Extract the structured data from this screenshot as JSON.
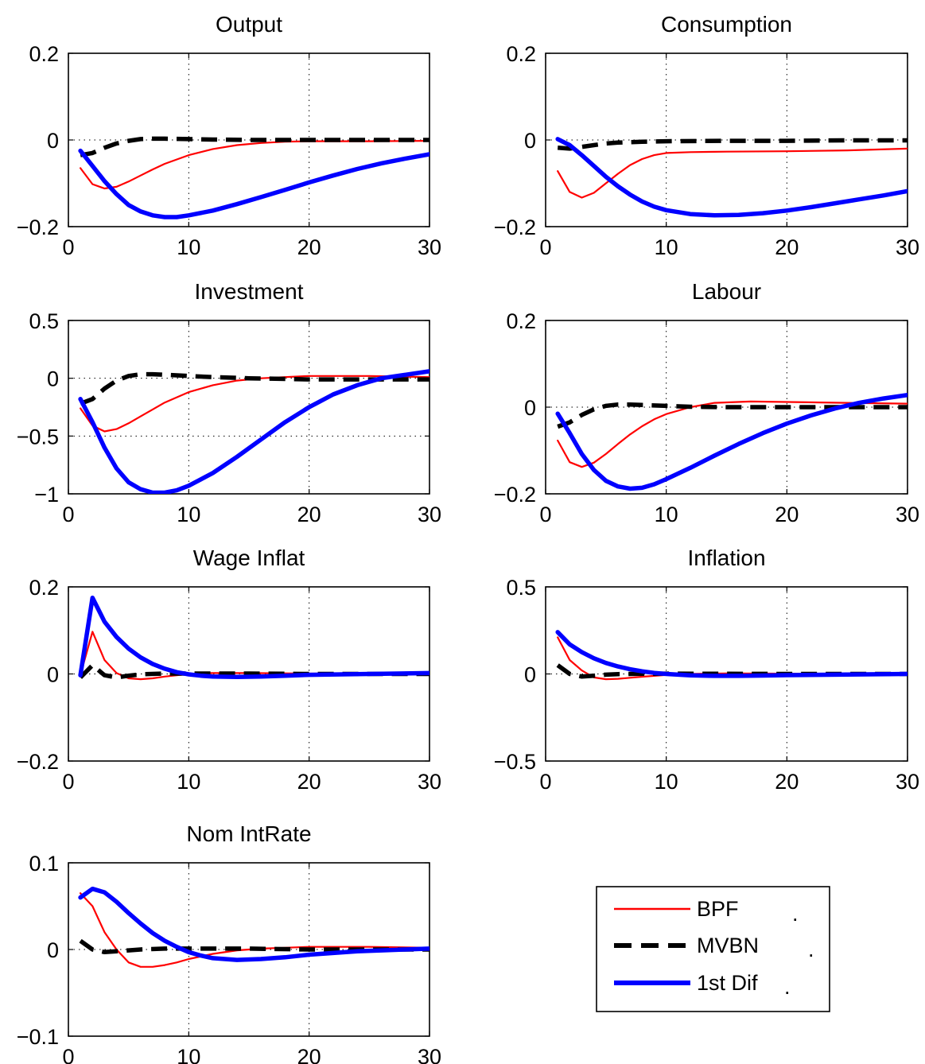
{
  "chart_data": [
    {
      "type": "line",
      "title": "Output",
      "xlim": [
        0,
        30
      ],
      "ylim": [
        -0.2,
        0.2
      ],
      "xticks": [
        0,
        10,
        20,
        30
      ],
      "yticks": [
        -0.2,
        0,
        0.2
      ],
      "grid": true,
      "series": [
        {
          "name": "BPF",
          "color": "#ff0000",
          "style": "solid",
          "x": [
            1,
            2,
            3,
            4,
            5,
            6,
            7,
            8,
            10,
            12,
            14,
            16,
            18,
            20,
            25,
            30
          ],
          "y": [
            -0.065,
            -0.102,
            -0.112,
            -0.108,
            -0.096,
            -0.082,
            -0.068,
            -0.055,
            -0.035,
            -0.021,
            -0.012,
            -0.007,
            -0.004,
            -0.003,
            -0.003,
            -0.002
          ]
        },
        {
          "name": "MVBN",
          "color": "#000000",
          "style": "dashed",
          "x": [
            1,
            2,
            3,
            4,
            5,
            6,
            7,
            8,
            10,
            12,
            15,
            20,
            25,
            30
          ],
          "y": [
            -0.035,
            -0.03,
            -0.018,
            -0.008,
            -0.002,
            0.002,
            0.003,
            0.003,
            0.002,
            0.001,
            0.0,
            0.0,
            0.0,
            0.0
          ]
        },
        {
          "name": "1st Dif",
          "color": "#0000ff",
          "style": "solid",
          "x": [
            1,
            2,
            3,
            4,
            5,
            6,
            7,
            8,
            9,
            10,
            12,
            14,
            16,
            18,
            20,
            22,
            24,
            26,
            28,
            30
          ],
          "y": [
            -0.025,
            -0.06,
            -0.095,
            -0.125,
            -0.15,
            -0.165,
            -0.174,
            -0.178,
            -0.178,
            -0.174,
            -0.163,
            -0.148,
            -0.132,
            -0.115,
            -0.098,
            -0.082,
            -0.067,
            -0.054,
            -0.043,
            -0.033
          ]
        }
      ]
    },
    {
      "type": "line",
      "title": "Consumption",
      "xlim": [
        0,
        30
      ],
      "ylim": [
        -0.2,
        0.2
      ],
      "xticks": [
        0,
        10,
        20,
        30
      ],
      "yticks": [
        -0.2,
        0,
        0.2
      ],
      "grid": true,
      "series": [
        {
          "name": "BPF",
          "color": "#ff0000",
          "style": "solid",
          "x": [
            1,
            2,
            3,
            4,
            5,
            6,
            7,
            8,
            9,
            10,
            12,
            15,
            20,
            25,
            30
          ],
          "y": [
            -0.072,
            -0.12,
            -0.133,
            -0.122,
            -0.1,
            -0.078,
            -0.058,
            -0.044,
            -0.035,
            -0.03,
            -0.028,
            -0.027,
            -0.026,
            -0.024,
            -0.02
          ]
        },
        {
          "name": "MVBN",
          "color": "#000000",
          "style": "dashed",
          "x": [
            1,
            2,
            3,
            4,
            5,
            6,
            8,
            10,
            15,
            20,
            25,
            30
          ],
          "y": [
            -0.018,
            -0.02,
            -0.016,
            -0.012,
            -0.008,
            -0.006,
            -0.004,
            -0.003,
            -0.002,
            -0.002,
            -0.001,
            -0.001
          ]
        },
        {
          "name": "1st Dif",
          "color": "#0000ff",
          "style": "solid",
          "x": [
            1,
            2,
            3,
            4,
            5,
            6,
            7,
            8,
            9,
            10,
            12,
            14,
            16,
            18,
            20,
            22,
            24,
            26,
            28,
            30
          ],
          "y": [
            0.002,
            -0.012,
            -0.035,
            -0.06,
            -0.085,
            -0.107,
            -0.126,
            -0.142,
            -0.154,
            -0.162,
            -0.171,
            -0.174,
            -0.173,
            -0.169,
            -0.163,
            -0.155,
            -0.146,
            -0.137,
            -0.128,
            -0.118
          ]
        }
      ]
    },
    {
      "type": "line",
      "title": "Investment",
      "xlim": [
        0,
        30
      ],
      "ylim": [
        -1,
        0.5
      ],
      "xticks": [
        0,
        10,
        20,
        30
      ],
      "yticks": [
        -1,
        -0.5,
        0,
        0.5
      ],
      "grid": true,
      "series": [
        {
          "name": "BPF",
          "color": "#ff0000",
          "style": "solid",
          "x": [
            1,
            2,
            3,
            4,
            5,
            6,
            7,
            8,
            10,
            12,
            14,
            16,
            18,
            20,
            25,
            30
          ],
          "y": [
            -0.26,
            -0.41,
            -0.46,
            -0.44,
            -0.39,
            -0.33,
            -0.27,
            -0.21,
            -0.12,
            -0.06,
            -0.02,
            0.0,
            0.01,
            0.02,
            0.02,
            0.01
          ]
        },
        {
          "name": "MVBN",
          "color": "#000000",
          "style": "dashed",
          "x": [
            1,
            2,
            3,
            4,
            5,
            6,
            7,
            8,
            10,
            12,
            15,
            20,
            25,
            30
          ],
          "y": [
            -0.22,
            -0.18,
            -0.09,
            -0.02,
            0.02,
            0.035,
            0.035,
            0.03,
            0.02,
            0.01,
            0.0,
            -0.01,
            -0.01,
            -0.01
          ]
        },
        {
          "name": "1st Dif",
          "color": "#0000ff",
          "style": "solid",
          "x": [
            1,
            2,
            3,
            4,
            5,
            6,
            7,
            8,
            9,
            10,
            12,
            14,
            16,
            18,
            20,
            22,
            24,
            26,
            28,
            30
          ],
          "y": [
            -0.18,
            -0.38,
            -0.6,
            -0.78,
            -0.9,
            -0.96,
            -0.99,
            -0.99,
            -0.97,
            -0.93,
            -0.82,
            -0.68,
            -0.53,
            -0.38,
            -0.25,
            -0.14,
            -0.06,
            0.0,
            0.03,
            0.06
          ]
        }
      ]
    },
    {
      "type": "line",
      "title": "Labour",
      "xlim": [
        0,
        30
      ],
      "ylim": [
        -0.2,
        0.2
      ],
      "xticks": [
        0,
        10,
        20,
        30
      ],
      "yticks": [
        -0.2,
        0,
        0.2
      ],
      "grid": true,
      "series": [
        {
          "name": "BPF",
          "color": "#ff0000",
          "style": "solid",
          "x": [
            1,
            2,
            3,
            4,
            5,
            6,
            7,
            8,
            9,
            10,
            12,
            14,
            17,
            20,
            25,
            30
          ],
          "y": [
            -0.077,
            -0.127,
            -0.138,
            -0.128,
            -0.108,
            -0.085,
            -0.063,
            -0.044,
            -0.028,
            -0.016,
            0.0,
            0.01,
            0.013,
            0.012,
            0.01,
            0.008
          ]
        },
        {
          "name": "MVBN",
          "color": "#000000",
          "style": "dashed",
          "x": [
            1,
            2,
            3,
            4,
            5,
            6,
            7,
            8,
            10,
            12,
            15,
            20,
            25,
            30
          ],
          "y": [
            -0.045,
            -0.035,
            -0.018,
            -0.005,
            0.003,
            0.006,
            0.006,
            0.005,
            0.003,
            0.001,
            0.0,
            0.0,
            0.0,
            0.0
          ]
        },
        {
          "name": "1st Dif",
          "color": "#0000ff",
          "style": "solid",
          "x": [
            1,
            2,
            3,
            4,
            5,
            6,
            7,
            8,
            9,
            10,
            12,
            14,
            16,
            18,
            20,
            22,
            24,
            26,
            28,
            30
          ],
          "y": [
            -0.015,
            -0.06,
            -0.108,
            -0.145,
            -0.17,
            -0.183,
            -0.188,
            -0.186,
            -0.178,
            -0.166,
            -0.14,
            -0.112,
            -0.085,
            -0.06,
            -0.038,
            -0.019,
            -0.003,
            0.01,
            0.02,
            0.028
          ]
        }
      ]
    },
    {
      "type": "line",
      "title": "Wage Inflat",
      "xlim": [
        0,
        30
      ],
      "ylim": [
        -0.2,
        0.2
      ],
      "xticks": [
        0,
        10,
        20,
        30
      ],
      "yticks": [
        -0.2,
        0,
        0.2
      ],
      "grid": true,
      "series": [
        {
          "name": "BPF",
          "color": "#ff0000",
          "style": "solid",
          "x": [
            1,
            2,
            3,
            4,
            5,
            6,
            7,
            8,
            10,
            12,
            15,
            20,
            25,
            30
          ],
          "y": [
            -0.002,
            0.097,
            0.032,
            0.002,
            -0.01,
            -0.012,
            -0.01,
            -0.006,
            0.0,
            0.002,
            0.002,
            0.001,
            0.0,
            0.0
          ]
        },
        {
          "name": "MVBN",
          "color": "#000000",
          "style": "dashed",
          "x": [
            1,
            2,
            3,
            4,
            5,
            6,
            8,
            10,
            15,
            20,
            25,
            30
          ],
          "y": [
            -0.008,
            0.02,
            -0.003,
            -0.008,
            -0.004,
            -0.001,
            0.001,
            0.001,
            0.001,
            0.0,
            0.0,
            0.0
          ]
        },
        {
          "name": "1st Dif",
          "color": "#0000ff",
          "style": "solid",
          "x": [
            1,
            2,
            3,
            4,
            5,
            6,
            7,
            8,
            9,
            10,
            11,
            12,
            14,
            16,
            18,
            20,
            25,
            30
          ],
          "y": [
            -0.003,
            0.175,
            0.12,
            0.085,
            0.058,
            0.038,
            0.023,
            0.012,
            0.004,
            -0.001,
            -0.004,
            -0.006,
            -0.007,
            -0.006,
            -0.004,
            -0.002,
            0.0,
            0.002
          ]
        }
      ]
    },
    {
      "type": "line",
      "title": "Inflation",
      "xlim": [
        0,
        30
      ],
      "ylim": [
        -0.5,
        0.5
      ],
      "xticks": [
        0,
        10,
        20,
        30
      ],
      "yticks": [
        -0.5,
        0,
        0.5
      ],
      "grid": true,
      "series": [
        {
          "name": "BPF",
          "color": "#ff0000",
          "style": "solid",
          "x": [
            1,
            2,
            3,
            4,
            5,
            6,
            7,
            8,
            10,
            12,
            15,
            20,
            25,
            30
          ],
          "y": [
            0.21,
            0.08,
            0.02,
            -0.02,
            -0.03,
            -0.028,
            -0.022,
            -0.016,
            -0.006,
            0.0,
            0.003,
            0.002,
            0.0,
            0.0
          ]
        },
        {
          "name": "MVBN",
          "color": "#000000",
          "style": "dashed",
          "x": [
            1,
            2,
            3,
            4,
            5,
            6,
            8,
            10,
            15,
            20,
            25,
            30
          ],
          "y": [
            0.05,
            0.0,
            -0.015,
            -0.01,
            -0.004,
            -0.001,
            0.001,
            0.002,
            0.001,
            0.0,
            0.0,
            0.0
          ]
        },
        {
          "name": "1st Dif",
          "color": "#0000ff",
          "style": "solid",
          "x": [
            1,
            2,
            3,
            4,
            5,
            6,
            7,
            8,
            9,
            10,
            12,
            14,
            16,
            18,
            20,
            25,
            30
          ],
          "y": [
            0.24,
            0.17,
            0.125,
            0.09,
            0.063,
            0.043,
            0.027,
            0.015,
            0.006,
            0.0,
            -0.008,
            -0.011,
            -0.011,
            -0.009,
            -0.007,
            -0.003,
            0.0
          ]
        }
      ]
    },
    {
      "type": "line",
      "title": "Nom IntRate",
      "xlim": [
        0,
        30
      ],
      "ylim": [
        -0.1,
        0.1
      ],
      "xticks": [
        0,
        10,
        20,
        30
      ],
      "yticks": [
        -0.1,
        0,
        0.1
      ],
      "grid": true,
      "series": [
        {
          "name": "BPF",
          "color": "#ff0000",
          "style": "solid",
          "x": [
            1,
            2,
            3,
            4,
            5,
            6,
            7,
            8,
            9,
            10,
            12,
            14,
            16,
            18,
            20,
            22,
            25,
            30
          ],
          "y": [
            0.065,
            0.05,
            0.02,
            0.0,
            -0.015,
            -0.02,
            -0.02,
            -0.018,
            -0.015,
            -0.011,
            -0.005,
            -0.001,
            0.001,
            0.002,
            0.003,
            0.003,
            0.003,
            0.002
          ]
        },
        {
          "name": "MVBN",
          "color": "#000000",
          "style": "dashed",
          "x": [
            1,
            2,
            3,
            4,
            5,
            6,
            8,
            10,
            12,
            15,
            20,
            25,
            30
          ],
          "y": [
            0.01,
            0.0,
            -0.003,
            -0.002,
            -0.001,
            0.0,
            0.001,
            0.001,
            0.001,
            0.001,
            0.0,
            0.0,
            0.0
          ]
        },
        {
          "name": "1st Dif",
          "color": "#0000ff",
          "style": "solid",
          "x": [
            1,
            2,
            3,
            4,
            5,
            6,
            7,
            8,
            9,
            10,
            11,
            12,
            14,
            16,
            18,
            20,
            22,
            24,
            26,
            28,
            30
          ],
          "y": [
            0.06,
            0.07,
            0.066,
            0.055,
            0.042,
            0.03,
            0.019,
            0.01,
            0.003,
            -0.003,
            -0.007,
            -0.01,
            -0.012,
            -0.011,
            -0.009,
            -0.006,
            -0.004,
            -0.002,
            -0.001,
            0.0,
            0.001
          ]
        }
      ]
    }
  ],
  "legend": {
    "position": "bottom-right",
    "entries": [
      {
        "label": "BPF",
        "suffix": ".",
        "color": "#ff0000",
        "style": "solid"
      },
      {
        "label": "MVBN",
        "suffix": ".",
        "color": "#000000",
        "style": "dashed"
      },
      {
        "label": "1st Dif",
        "suffix": ".",
        "color": "#0000ff",
        "style": "solid"
      }
    ]
  }
}
